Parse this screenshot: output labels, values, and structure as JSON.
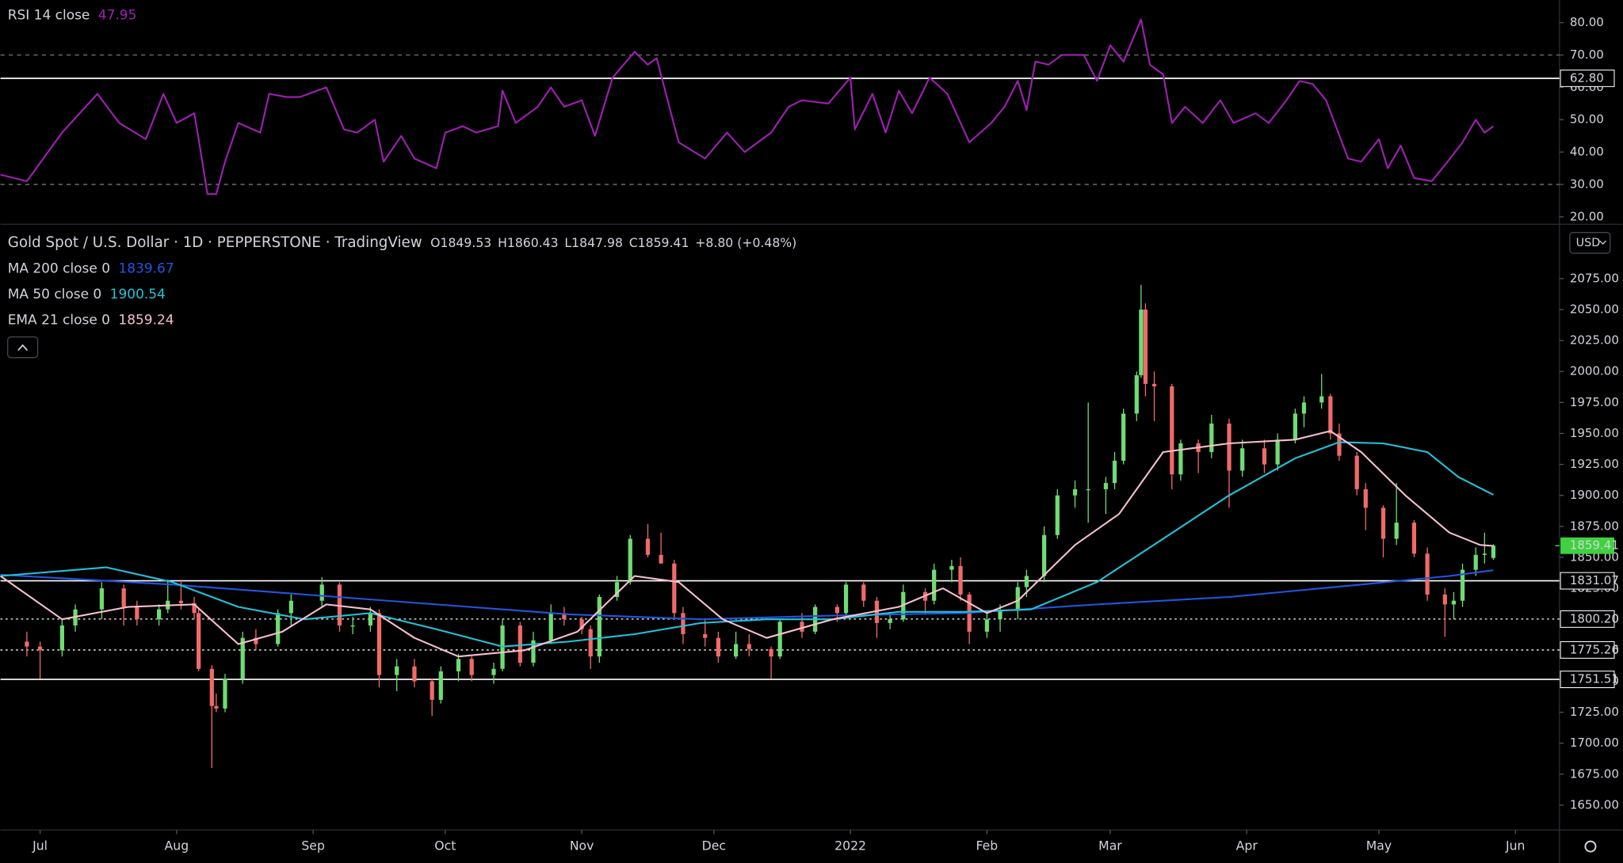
{
  "chart_data": [
    {
      "type": "line",
      "title": "RSI 14 close",
      "series": [
        {
          "name": "RSI 14 close",
          "color": "#a020b4",
          "x": [
            -9,
            -3,
            5,
            13,
            18,
            24,
            28,
            31,
            35,
            36,
            38,
            40,
            42,
            45,
            50,
            52,
            56,
            59,
            65,
            69,
            72,
            76,
            78,
            82,
            85,
            90,
            92,
            96,
            99,
            104,
            105,
            108,
            113,
            116,
            119,
            123,
            126,
            130,
            135,
            138,
            140,
            145,
            151,
            156,
            160,
            166,
            170,
            173,
            179,
            184,
            185,
            189,
            192,
            195,
            198,
            202,
            206,
            211,
            216,
            219,
            222,
            224,
            226,
            229,
            232,
            237,
            240,
            243,
            246,
            250,
            252,
            255,
            257,
            260,
            264,
            268,
            271,
            276,
            279,
            283,
            286,
            289,
            292,
            297,
            300,
            304,
            306,
            309,
            312,
            316,
            319,
            323,
            326,
            328,
            330
          ],
          "values": [
            33,
            31,
            46,
            58,
            49,
            44,
            58,
            49,
            52,
            44,
            27,
            27,
            37,
            49,
            46,
            58,
            57,
            57,
            60,
            47,
            46,
            50,
            37,
            45,
            38,
            35,
            46,
            48,
            46,
            48,
            59,
            49,
            54,
            60,
            54,
            56,
            45,
            63,
            71,
            67,
            69,
            43,
            38,
            46,
            40,
            46,
            54,
            56,
            55,
            63,
            47,
            58,
            46,
            59,
            52,
            63,
            58,
            43,
            49,
            54,
            62,
            53,
            68,
            67,
            70,
            70,
            62,
            73,
            68,
            81,
            67,
            64,
            49,
            54,
            49,
            56,
            49,
            52,
            49,
            56,
            62,
            61,
            56,
            38,
            37,
            44,
            35,
            42,
            32,
            31,
            36,
            43,
            50,
            46,
            47.95
          ]
        }
      ],
      "xlim": [
        -9,
        345
      ],
      "ylim": [
        18,
        87
      ],
      "yticks": [
        {
          "value": 20,
          "label": "20.00"
        },
        {
          "value": 30,
          "label": "30.00"
        },
        {
          "value": 40,
          "label": "40.00"
        },
        {
          "value": 50,
          "label": "50.00"
        },
        {
          "value": 60,
          "label": "60.00"
        },
        {
          "value": 70,
          "label": "70.00"
        },
        {
          "value": 80,
          "label": "80.00"
        }
      ],
      "levels": [
        {
          "value": 70,
          "style": "dashed"
        },
        {
          "value": 30,
          "style": "dashed"
        },
        {
          "value": 62.8,
          "label": "62.80",
          "style": "solid"
        }
      ]
    },
    {
      "type": "candlestick",
      "title": "Gold Spot / U.S. Dollar · 1D · PEPPERSTONE · TradingView",
      "ohlc_labels": [
        "O1849.53",
        "H1860.43",
        "L1847.98",
        "C1859.41",
        "+8.80 (+0.48%)"
      ],
      "currency": "USD",
      "up_color": "#6fdc74",
      "down_color": "#f06a6a",
      "x": [
        -3,
        0,
        5,
        8,
        14,
        19,
        22,
        27,
        29,
        32,
        35,
        36,
        39,
        40,
        42,
        46,
        49,
        54,
        57,
        64,
        68,
        71,
        75,
        77,
        81,
        85,
        89,
        91,
        95,
        98,
        103,
        105,
        109,
        112,
        116,
        119,
        123,
        125,
        127,
        131,
        134,
        138,
        141,
        144,
        146,
        151,
        154,
        158,
        161,
        166,
        168,
        173,
        176,
        181,
        183,
        187,
        190,
        193,
        196,
        201,
        203,
        207,
        209,
        211,
        215,
        218,
        222,
        224,
        228,
        231,
        235,
        238,
        242,
        244,
        246,
        249,
        250,
        251,
        253,
        257,
        259,
        263,
        266,
        270,
        273,
        278,
        281,
        285,
        287,
        291,
        293,
        295,
        299,
        301,
        305,
        308,
        312,
        315,
        319,
        321,
        323,
        326,
        328,
        330
      ],
      "open": [
        1782,
        1778,
        1775,
        1795,
        1808,
        1825,
        1810,
        1800,
        1808,
        1815,
        1813,
        1805,
        1760,
        1730,
        1728,
        1752,
        1785,
        1780,
        1805,
        1815,
        1828,
        1795,
        1795,
        1805,
        1755,
        1762,
        1750,
        1735,
        1758,
        1768,
        1755,
        1760,
        1795,
        1765,
        1783,
        1805,
        1800,
        1792,
        1770,
        1818,
        1830,
        1865,
        1852,
        1845,
        1805,
        1788,
        1785,
        1770,
        1780,
        1776,
        1770,
        1798,
        1790,
        1810,
        1805,
        1828,
        1815,
        1797,
        1800,
        1822,
        1815,
        1840,
        1843,
        1820,
        1790,
        1800,
        1807,
        1826,
        1835,
        1868,
        1900,
        1905,
        1905,
        1910,
        1928,
        1966,
        1997,
        2050,
        1990,
        1988,
        1917,
        1942,
        1935,
        1958,
        1920,
        1938,
        1925,
        1945,
        1966,
        1975,
        1980,
        1950,
        1932,
        1905,
        1890,
        1865,
        1878,
        1853,
        1820,
        1812,
        1815,
        1840,
        1852,
        1849.53
      ],
      "high": [
        1790,
        1782,
        1800,
        1812,
        1830,
        1828,
        1815,
        1812,
        1832,
        1832,
        1818,
        1808,
        1763,
        1740,
        1756,
        1790,
        1792,
        1808,
        1820,
        1834,
        1830,
        1802,
        1810,
        1808,
        1768,
        1768,
        1752,
        1762,
        1772,
        1770,
        1765,
        1800,
        1798,
        1790,
        1812,
        1810,
        1802,
        1795,
        1820,
        1835,
        1868,
        1877,
        1870,
        1848,
        1810,
        1800,
        1790,
        1790,
        1788,
        1778,
        1800,
        1805,
        1812,
        1812,
        1830,
        1830,
        1818,
        1805,
        1828,
        1825,
        1845,
        1848,
        1850,
        1822,
        1805,
        1812,
        1830,
        1840,
        1875,
        1905,
        1912,
        1975,
        1915,
        1935,
        1970,
        2000,
        2070,
        2055,
        2000,
        1990,
        1945,
        1945,
        1965,
        1962,
        1945,
        1945,
        1950,
        1970,
        1980,
        1998,
        1982,
        1958,
        1935,
        1910,
        1892,
        1910,
        1880,
        1858,
        1825,
        1822,
        1845,
        1858,
        1870,
        1860.43
      ],
      "low": [
        1770,
        1752,
        1770,
        1790,
        1800,
        1795,
        1795,
        1795,
        1805,
        1808,
        1800,
        1758,
        1680,
        1725,
        1725,
        1748,
        1775,
        1778,
        1795,
        1810,
        1790,
        1788,
        1790,
        1745,
        1742,
        1745,
        1722,
        1732,
        1750,
        1750,
        1748,
        1758,
        1762,
        1762,
        1780,
        1795,
        1788,
        1760,
        1765,
        1815,
        1828,
        1850,
        1845,
        1800,
        1780,
        1778,
        1765,
        1768,
        1770,
        1752,
        1768,
        1785,
        1788,
        1798,
        1802,
        1810,
        1785,
        1792,
        1798,
        1805,
        1812,
        1830,
        1815,
        1780,
        1785,
        1790,
        1800,
        1818,
        1830,
        1865,
        1890,
        1878,
        1885,
        1905,
        1925,
        1960,
        1995,
        1980,
        1960,
        1905,
        1912,
        1918,
        1930,
        1890,
        1915,
        1918,
        1920,
        1942,
        1955,
        1970,
        1945,
        1928,
        1900,
        1872,
        1850,
        1860,
        1850,
        1815,
        1786,
        1800,
        1810,
        1835,
        1845,
        1847.98
      ],
      "close": [
        1778,
        1775,
        1795,
        1808,
        1825,
        1810,
        1800,
        1808,
        1815,
        1813,
        1805,
        1760,
        1730,
        1728,
        1752,
        1785,
        1780,
        1805,
        1815,
        1828,
        1795,
        1795,
        1805,
        1755,
        1762,
        1750,
        1735,
        1758,
        1768,
        1755,
        1760,
        1795,
        1765,
        1783,
        1805,
        1800,
        1792,
        1770,
        1818,
        1830,
        1865,
        1852,
        1845,
        1805,
        1788,
        1785,
        1770,
        1780,
        1776,
        1770,
        1798,
        1790,
        1810,
        1805,
        1828,
        1815,
        1797,
        1800,
        1822,
        1815,
        1840,
        1843,
        1820,
        1790,
        1800,
        1807,
        1826,
        1835,
        1868,
        1900,
        1905,
        1905,
        1910,
        1928,
        1966,
        1997,
        2050,
        1990,
        1988,
        1917,
        1942,
        1935,
        1958,
        1920,
        1938,
        1925,
        1945,
        1966,
        1975,
        1980,
        1950,
        1932,
        1905,
        1890,
        1865,
        1878,
        1853,
        1820,
        1812,
        1815,
        1840,
        1852,
        1853,
        1859.41
      ],
      "series": [
        {
          "name": "MA 200 close 0",
          "color": "#2255e0",
          "x": [
            -9,
            30,
            60,
            90,
            120,
            150,
            180,
            210,
            240,
            270,
            300,
            320,
            330
          ],
          "values": [
            1836,
            1828,
            1820,
            1812,
            1804,
            1800,
            1803,
            1805,
            1812,
            1818,
            1828,
            1835,
            1839.67
          ]
        },
        {
          "name": "MA 50 close 0",
          "color": "#22c3d8",
          "x": [
            -9,
            15,
            30,
            45,
            60,
            75,
            90,
            105,
            120,
            135,
            150,
            165,
            180,
            195,
            210,
            225,
            240,
            255,
            270,
            285,
            295,
            305,
            315,
            322,
            330
          ],
          "values": [
            1835,
            1842,
            1830,
            1810,
            1800,
            1805,
            1792,
            1778,
            1782,
            1788,
            1797,
            1800,
            1800,
            1806,
            1806,
            1808,
            1830,
            1865,
            1900,
            1930,
            1943,
            1942,
            1935,
            1915,
            1900.54
          ]
        },
        {
          "name": "EMA 21 close 0",
          "color": "#f7bfcf",
          "x": [
            -9,
            5,
            20,
            35,
            45,
            55,
            65,
            75,
            85,
            95,
            110,
            122,
            135,
            145,
            155,
            165,
            180,
            195,
            205,
            215,
            222,
            235,
            245,
            255,
            270,
            285,
            293,
            300,
            310,
            320,
            327,
            330
          ],
          "values": [
            1835,
            1800,
            1810,
            1812,
            1780,
            1790,
            1812,
            1808,
            1785,
            1770,
            1775,
            1790,
            1835,
            1830,
            1800,
            1785,
            1800,
            1810,
            1825,
            1805,
            1815,
            1860,
            1885,
            1935,
            1942,
            1945,
            1952,
            1935,
            1900,
            1870,
            1860,
            1859.24
          ]
        }
      ],
      "xlim": [
        -9,
        345
      ],
      "ylim": [
        1630,
        2118
      ],
      "xticks": [
        {
          "value": 0,
          "label": "Jul"
        },
        {
          "value": 31,
          "label": "Aug"
        },
        {
          "value": 62,
          "label": "Sep"
        },
        {
          "value": 92,
          "label": "Oct"
        },
        {
          "value": 123,
          "label": "Nov"
        },
        {
          "value": 153,
          "label": "Dec"
        },
        {
          "value": 184,
          "label": "2022"
        },
        {
          "value": 215,
          "label": "Feb"
        },
        {
          "value": 243,
          "label": "Mar"
        },
        {
          "value": 274,
          "label": "Apr"
        },
        {
          "value": 304,
          "label": "May"
        },
        {
          "value": 335,
          "label": "Jun"
        }
      ],
      "yticks": [
        {
          "value": 1650,
          "label": "1650.00"
        },
        {
          "value": 1675,
          "label": "1675.00"
        },
        {
          "value": 1700,
          "label": "1700.00"
        },
        {
          "value": 1725,
          "label": "1725.00"
        },
        {
          "value": 1750,
          "label": "1750.00"
        },
        {
          "value": 1775,
          "label": "1775.00"
        },
        {
          "value": 1800,
          "label": "1800.00"
        },
        {
          "value": 1825,
          "label": "1825.00"
        },
        {
          "value": 1850,
          "label": "1850.00"
        },
        {
          "value": 1875,
          "label": "1875.00"
        },
        {
          "value": 1900,
          "label": "1900.00"
        },
        {
          "value": 1925,
          "label": "1925.00"
        },
        {
          "value": 1950,
          "label": "1950.00"
        },
        {
          "value": 1975,
          "label": "1975.00"
        },
        {
          "value": 2000,
          "label": "2000.00"
        },
        {
          "value": 2025,
          "label": "2025.00"
        },
        {
          "value": 2050,
          "label": "2050.00"
        },
        {
          "value": 2075,
          "label": "2075.00"
        }
      ],
      "levels": [
        {
          "value": 1831.07,
          "label": "1831.07",
          "style": "solid"
        },
        {
          "value": 1800.2,
          "label": "1800.20",
          "style": "dotted"
        },
        {
          "value": 1775.26,
          "label": "1775.26",
          "style": "dotted"
        },
        {
          "value": 1751.51,
          "label": "1751.51",
          "style": "solid"
        }
      ]
    }
  ]
}
